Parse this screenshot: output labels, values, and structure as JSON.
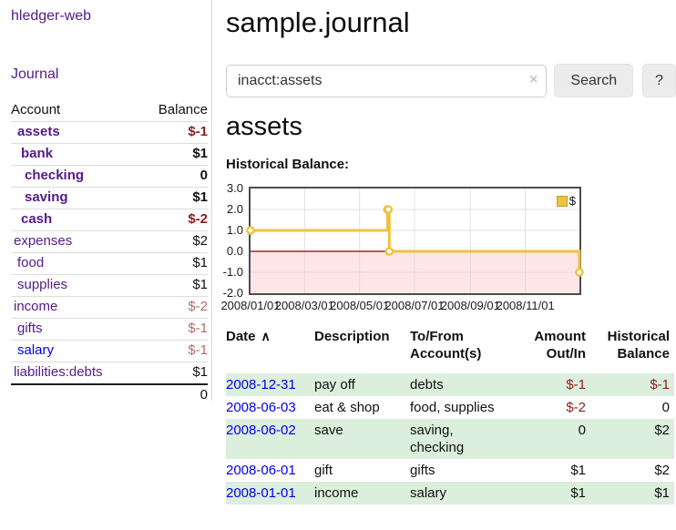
{
  "sidebar": {
    "brand": "hledger-web",
    "journal_link": "Journal",
    "accounts": {
      "headers": {
        "account": "Account",
        "balance": "Balance"
      },
      "rows": [
        {
          "name": "assets",
          "balance": "$-1",
          "depth": 1,
          "bold": true
        },
        {
          "name": "bank",
          "balance": "$1",
          "depth": 2,
          "bold": true
        },
        {
          "name": "checking",
          "balance": "0",
          "depth": 3,
          "bold": true
        },
        {
          "name": "saving",
          "balance": "$1",
          "depth": 3,
          "bold": true
        },
        {
          "name": "cash",
          "balance": "$-2",
          "depth": 2,
          "bold": true
        },
        {
          "name": "expenses",
          "balance": "$2",
          "depth": 1
        },
        {
          "name": "food",
          "balance": "$1",
          "depth": 2
        },
        {
          "name": "supplies",
          "balance": "$1",
          "depth": 2
        },
        {
          "name": "income",
          "balance": "$-2",
          "depth": 1
        },
        {
          "name": "gifts",
          "balance": "$-1",
          "depth": 2
        },
        {
          "name": "salary",
          "balance": "$-1",
          "depth": 2,
          "blue": true
        },
        {
          "name": "liabilities:debts",
          "balance": "$1",
          "depth": 1
        }
      ],
      "total": "0"
    }
  },
  "main": {
    "title": "sample.journal",
    "search": {
      "value": "inacct:assets",
      "clear_icon": "×",
      "button_label": "Search",
      "help_label": "?"
    },
    "account_heading": "assets",
    "chart_label": "Historical Balance:"
  },
  "chart_data": {
    "type": "line",
    "step": true,
    "title": "Historical Balance",
    "series": [
      {
        "name": "$",
        "color": "#edc240",
        "points": [
          [
            "2008-01-01",
            1
          ],
          [
            "2008-06-01",
            2
          ],
          [
            "2008-06-02",
            2
          ],
          [
            "2008-06-03",
            0
          ],
          [
            "2008-12-31",
            -1
          ]
        ]
      }
    ],
    "x_ticks": [
      "2008/01/01",
      "2008/03/01",
      "2008/05/01",
      "2008/07/01",
      "2008/09/01",
      "2008/11/01"
    ],
    "y_ticks": [
      "3.0",
      "2.0",
      "1.0",
      "0.0",
      "-1.0",
      "-2.0"
    ],
    "ylim": [
      -2,
      3
    ],
    "xlim_dates": [
      "2008-01-01",
      "2008-12-31"
    ],
    "grid": true,
    "legend_position": "top-right",
    "gridline_color": "#e0e0e0",
    "negative_region_color": "#ffc8c8",
    "zero_line_color": "#8b0000",
    "marker_fill": "#ffffff"
  },
  "register": {
    "headers": [
      {
        "label": "Date",
        "sort_icon": "∧"
      },
      {
        "label": "Description"
      },
      {
        "label": "To/From Account(s)"
      },
      {
        "label": "Amount Out/In"
      },
      {
        "label": "Historical Balance"
      }
    ],
    "rows": [
      {
        "date": "2008-12-31",
        "description": "pay off",
        "accounts": "debts",
        "amount": "$-1",
        "balance": "$-1"
      },
      {
        "date": "2008-06-03",
        "description": "eat & shop",
        "accounts": "food, supplies",
        "amount": "$-2",
        "balance": "0"
      },
      {
        "date": "2008-06-02",
        "description": "save",
        "accounts": "saving, checking",
        "amount": "0",
        "balance": "$2"
      },
      {
        "date": "2008-06-01",
        "description": "gift",
        "accounts": "gifts",
        "amount": "$1",
        "balance": "$2"
      },
      {
        "date": "2008-01-01",
        "description": "income",
        "accounts": "salary",
        "amount": "$1",
        "balance": "$1"
      }
    ]
  }
}
